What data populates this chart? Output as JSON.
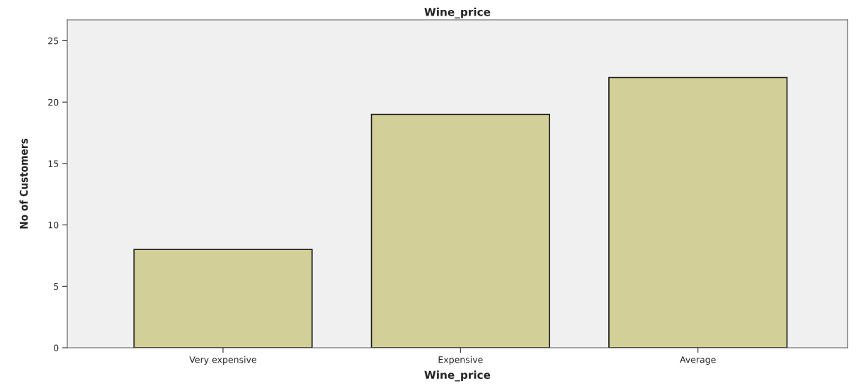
{
  "chart_data": {
    "type": "bar",
    "title": "Wine_price",
    "xlabel": "Wine_price",
    "ylabel": "No of Customers",
    "categories": [
      "Very expensive",
      "Expensive",
      "Average"
    ],
    "values": [
      8,
      19,
      22
    ],
    "color": "#d3cf98",
    "ylim": [
      0,
      26.7
    ],
    "yticks": [
      0,
      5,
      10,
      15,
      20,
      25
    ],
    "grid": false
  }
}
